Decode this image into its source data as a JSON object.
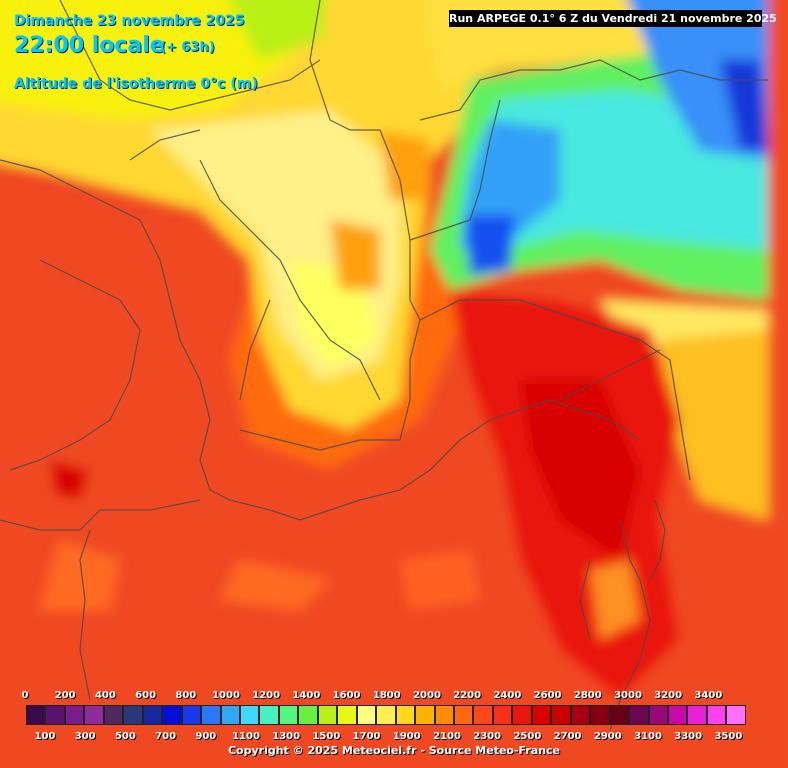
{
  "header": {
    "date_line": "Dimanche 23 novembre 2025",
    "time_label": "22:00 locale",
    "lead_time": "(+ 63h)",
    "parameter": "Altitude de l'isotherme 0°c (m)"
  },
  "run_info": "Run ARPEGE 0.1° 6 Z du Vendredi 21 novembre 2025",
  "legend": {
    "top_labels": [
      "0",
      "200",
      "400",
      "600",
      "800",
      "1000",
      "1200",
      "1400",
      "1600",
      "1800",
      "2000",
      "2200",
      "2400",
      "2600",
      "2800",
      "3000",
      "3200",
      "3400"
    ],
    "bottom_labels": [
      "100",
      "300",
      "500",
      "700",
      "900",
      "1100",
      "1300",
      "1500",
      "1700",
      "1900",
      "2100",
      "2300",
      "2500",
      "2700",
      "2900",
      "3100",
      "3300",
      "3500"
    ],
    "colors": [
      "#3b0a4a",
      "#5a1270",
      "#7a1c8c",
      "#8e2a9a",
      "#502860",
      "#283878",
      "#1828a0",
      "#0010d8",
      "#1838f0",
      "#2878f8",
      "#30a8f8",
      "#40d8f8",
      "#48f0c0",
      "#50f880",
      "#68f040",
      "#b8f018",
      "#e8f810",
      "#ffff80",
      "#fff050",
      "#ffd818",
      "#ffb000",
      "#ff8c00",
      "#ff6810",
      "#ff4818",
      "#f83018",
      "#e81808",
      "#d80000",
      "#c80000",
      "#a80010",
      "#880010",
      "#680018",
      "#6c0850",
      "#980878",
      "#c808a8",
      "#e820d8",
      "#ff40f0",
      "#ff70f8"
    ]
  },
  "copyright": "Copyright © 2025 Meteociel.fr - Source Meteo-France"
}
